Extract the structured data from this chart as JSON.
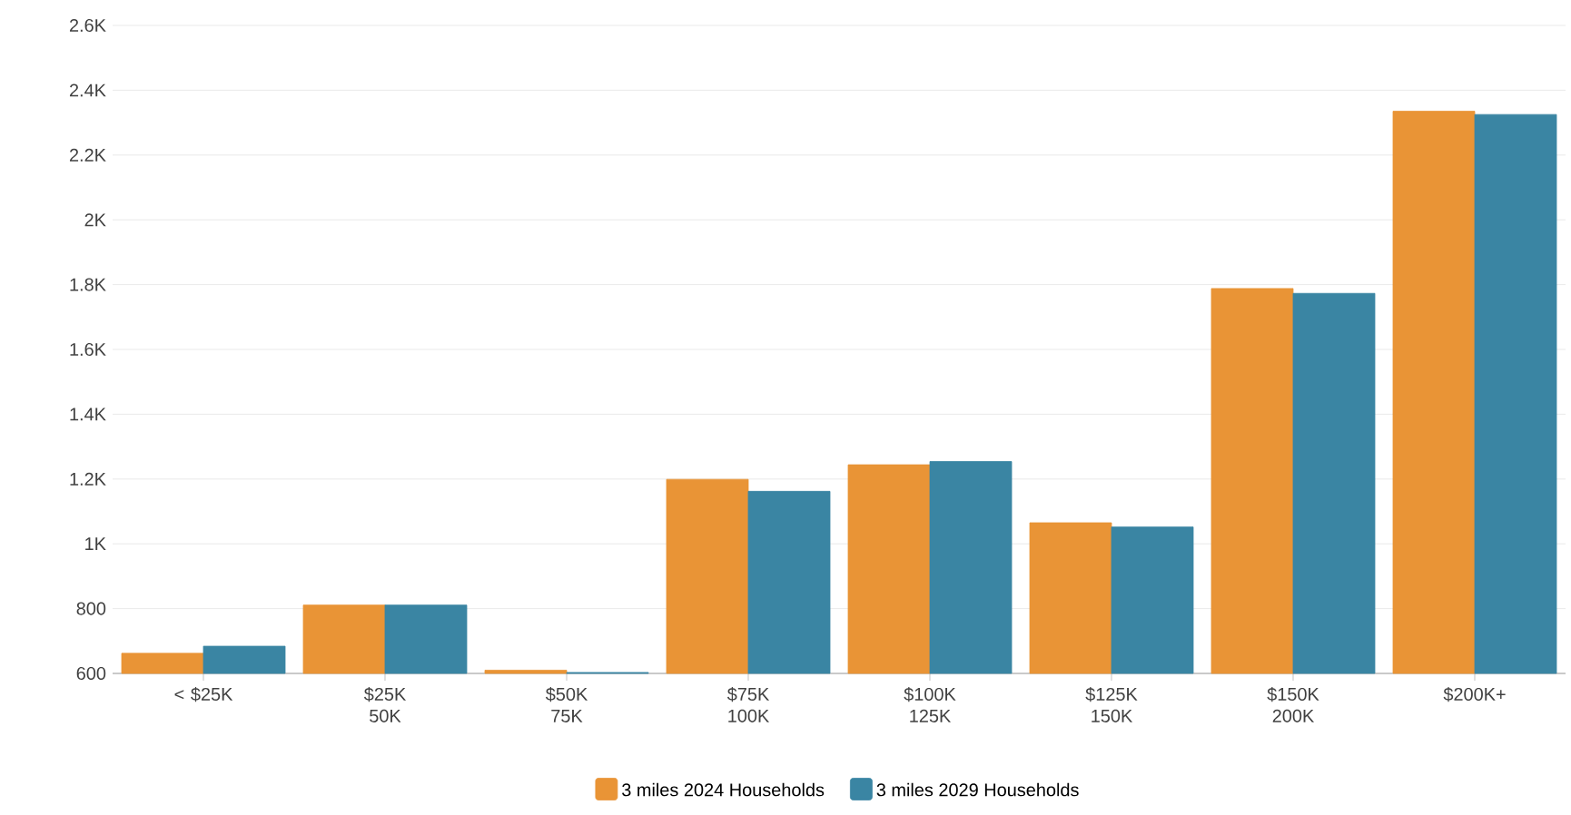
{
  "chart_data": {
    "type": "bar",
    "categories": [
      "< $25K",
      "$25K 50K",
      "$50K 75K",
      "$75K 100K",
      "$100K 125K",
      "$125K 150K",
      "$150K 200K",
      "$200K+"
    ],
    "series": [
      {
        "name": "3 miles 2024 Households",
        "color": "#e99436",
        "values": [
          662,
          811,
          610,
          1199,
          1244,
          1065,
          1788,
          2335
        ]
      },
      {
        "name": "3 miles 2029 Households",
        "color": "#3a85a3",
        "values": [
          684,
          811,
          603,
          1162,
          1254,
          1052,
          1773,
          2325
        ]
      }
    ],
    "ylim": [
      600,
      2600
    ],
    "yticks": [
      600,
      800,
      {
        "value": 1000,
        "label": "1K"
      },
      {
        "value": 1200,
        "label": "1.2K"
      },
      {
        "value": 1400,
        "label": "1.4K"
      },
      {
        "value": 1600,
        "label": "1.6K"
      },
      {
        "value": 1800,
        "label": "1.8K"
      },
      {
        "value": 2000,
        "label": "2K"
      },
      {
        "value": 2200,
        "label": "2.2K"
      },
      {
        "value": 2400,
        "label": "2.4K"
      },
      {
        "value": 2600,
        "label": "2.6K"
      }
    ],
    "grid": "y",
    "legend": "bottom"
  }
}
